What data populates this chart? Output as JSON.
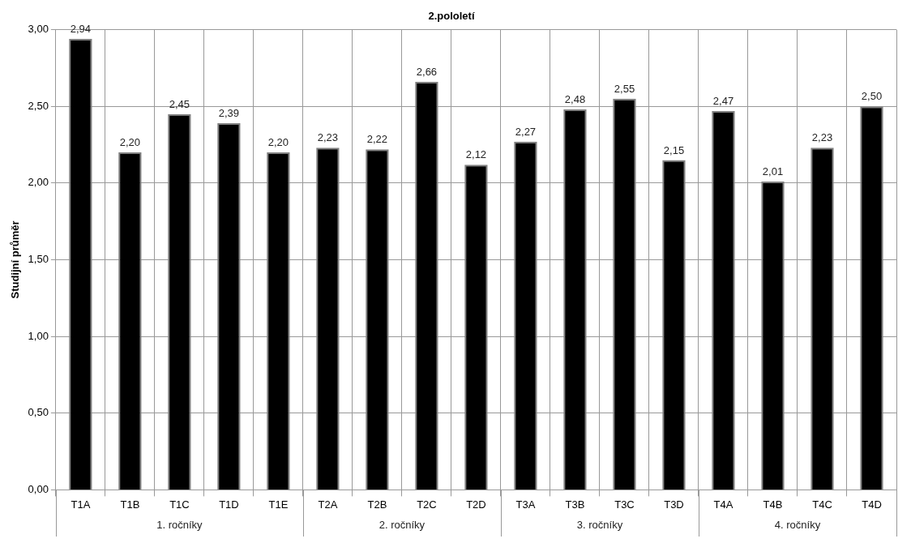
{
  "chart_data": {
    "type": "bar",
    "title": "2.pololetí",
    "ylabel": "Studijní průměr",
    "categories": [
      "T1A",
      "T1B",
      "T1C",
      "T1D",
      "T1E",
      "T2A",
      "T2B",
      "T2C",
      "T2D",
      "T3A",
      "T3B",
      "T3C",
      "T3D",
      "T4A",
      "T4B",
      "T4C",
      "T4D"
    ],
    "values": [
      2.94,
      2.2,
      2.45,
      2.39,
      2.2,
      2.23,
      2.22,
      2.66,
      2.12,
      2.27,
      2.48,
      2.55,
      2.15,
      2.47,
      2.01,
      2.23,
      2.5
    ],
    "value_labels": [
      "2,94",
      "2,20",
      "2,45",
      "2,39",
      "2,20",
      "2,23",
      "2,22",
      "2,66",
      "2,12",
      "2,27",
      "2,48",
      "2,55",
      "2,15",
      "2,47",
      "2,01",
      "2,23",
      "2,50"
    ],
    "color": "#000000",
    "ylim": [
      0,
      3
    ],
    "yticks": [
      {
        "value": 0,
        "label": "0,00"
      },
      {
        "value": 0.5,
        "label": "0,50"
      },
      {
        "value": 1,
        "label": "1,00"
      },
      {
        "value": 1.5,
        "label": "1,50"
      },
      {
        "value": 2,
        "label": "2,00"
      },
      {
        "value": 2.5,
        "label": "2,50"
      },
      {
        "value": 3,
        "label": "3,00"
      }
    ],
    "grid": true,
    "legend": false,
    "annotations": [
      "1. ročníky",
      "2. ročníky",
      "3. ročníky",
      "4. ročníky"
    ]
  }
}
